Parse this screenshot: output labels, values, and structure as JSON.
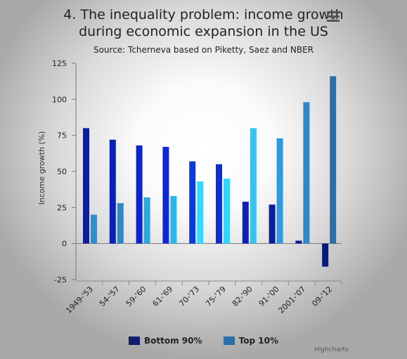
{
  "title_lines": [
    "4. The inequality problem: income growth",
    "during economic expansion in the US"
  ],
  "subtitle": "Source: Tcherneva based on Piketty, Saez and NBER",
  "menu_icon": "hamburger-menu-icon",
  "credits": "Highcharts",
  "chart_data": {
    "type": "bar",
    "title": "4. The inequality problem: income growth during economic expansion in the US",
    "subtitle": "Source: Tcherneva based on Piketty, Saez and NBER",
    "xlabel": "",
    "ylabel": "Income growth (%)",
    "ylim": [
      -25,
      125
    ],
    "yticks": [
      -25,
      0,
      25,
      50,
      75,
      100,
      125
    ],
    "categories": [
      "1949-'53",
      "54-'57",
      "59-'60",
      "61-'69",
      "70-'73",
      "75-'79",
      "82-'90",
      "91-'00",
      "2001-'07",
      "09-'12"
    ],
    "series": [
      {
        "name": "Bottom 90%",
        "values": [
          80,
          72,
          68,
          67,
          57,
          55,
          29,
          27,
          2,
          -16
        ],
        "color": "#0c1fd2",
        "colors": [
          "#0b1f96",
          "#0a22b4",
          "#0b25c8",
          "#0c28d8",
          "#0a3be0",
          "#0a2ed8",
          "#0c21b8",
          "#0c1fa0",
          "#0b1b8a",
          "#091a78"
        ]
      },
      {
        "name": "Top 10%",
        "values": [
          20,
          28,
          32,
          33,
          43,
          45,
          80,
          73,
          98,
          116
        ],
        "color": "#2a6faa",
        "colors": [
          "#2d8fcf",
          "#2a8ac8",
          "#2ca7df",
          "#2cb6ea",
          "#36d8ff",
          "#38d2fb",
          "#38c2f0",
          "#2f9ae0",
          "#2f87c8",
          "#2a70a8"
        ]
      }
    ],
    "legend": [
      {
        "name": "Bottom 90%",
        "color": "#121c6e"
      },
      {
        "name": "Top 10%",
        "color": "#2a6faa"
      }
    ],
    "grid": false,
    "legend_position": "bottom"
  }
}
